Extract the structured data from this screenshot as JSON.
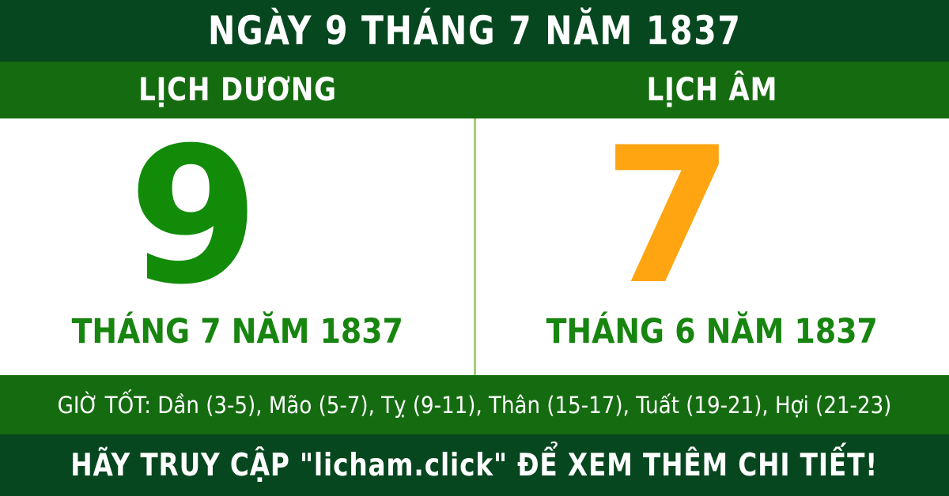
{
  "header": {
    "title": "NGÀY 9 THÁNG 7 NĂM 1837"
  },
  "calendar": {
    "solar": {
      "label": "LỊCH DƯƠNG",
      "day": "9",
      "month_year": "THÁNG 7 NĂM 1837"
    },
    "lunar": {
      "label": "LỊCH ÂM",
      "day": "7",
      "month_year": "THÁNG 6 NĂM 1837"
    }
  },
  "good_hours": {
    "text": "GIỜ TỐT: Dần (3-5), Mão (5-7), Tỵ (9-11), Thân (15-17), Tuất (19-21), Hợi (21-23)"
  },
  "footer": {
    "text": "HÃY TRUY CẬP \"licham.click\" ĐỂ XEM THÊM CHI TIẾT!"
  },
  "colors": {
    "dark_green": "#07471f",
    "bright_green": "#156c10",
    "number_green": "#118b08",
    "number_orange": "#ffa512",
    "label_green": "#17850f",
    "divider_green": "#a5cd72",
    "text_white": "#ffffff"
  }
}
